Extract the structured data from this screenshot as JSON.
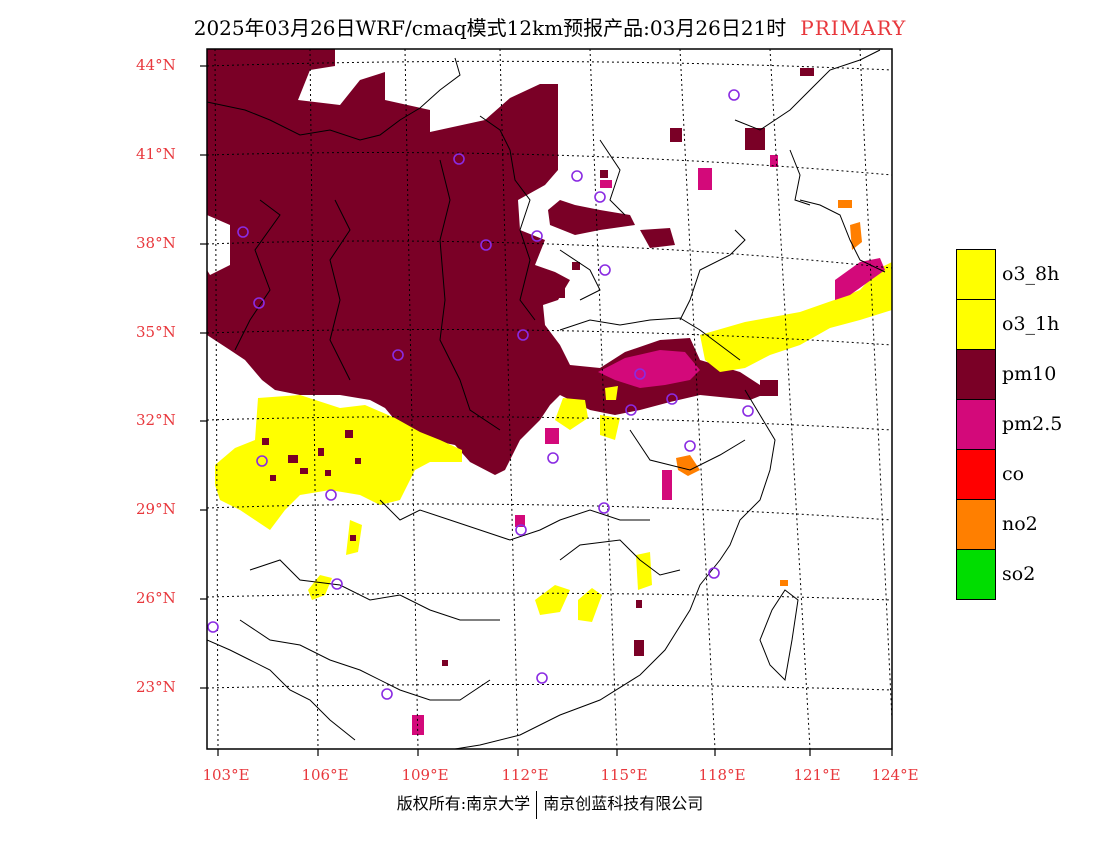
{
  "title": {
    "main": "2025年03月26日WRF/cmaq模式12km预报产品:03月26日21时",
    "tag": "PRIMARY"
  },
  "axes": {
    "lat_labels": [
      "44°N",
      "41°N",
      "38°N",
      "35°N",
      "32°N",
      "29°N",
      "26°N",
      "23°N"
    ],
    "lon_labels": [
      "103°E",
      "106°E",
      "109°E",
      "112°E",
      "115°E",
      "118°E",
      "121°E",
      "124°E"
    ]
  },
  "legend": [
    {
      "label": "o3_8h",
      "color": "#ffff00"
    },
    {
      "label": "o3_1h",
      "color": "#ffff00"
    },
    {
      "label": "pm10",
      "color": "#7a0026"
    },
    {
      "label": "pm2.5",
      "color": "#d3097a"
    },
    {
      "label": "co",
      "color": "#ff0000"
    },
    {
      "label": "no2",
      "color": "#ff7f00"
    },
    {
      "label": "so2",
      "color": "#00dd00"
    }
  ],
  "colors": {
    "accent_label": "#e8383d",
    "station_marker": "#8a2be2"
  },
  "footer": {
    "left": "版权所有:南京大学",
    "right": "南京创蓝科技有限公司"
  }
}
